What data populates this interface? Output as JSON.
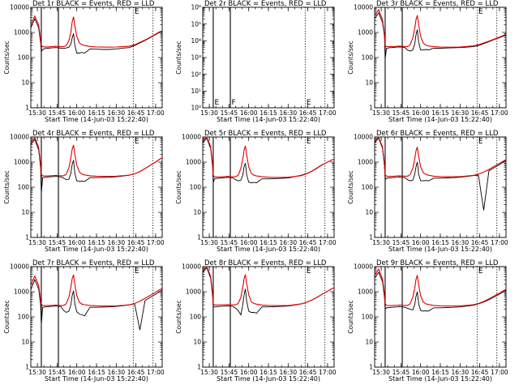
{
  "chart_data": {
    "type": "line",
    "layout": "3x3 grid",
    "title_pattern": "BLACK = Events, RED = LLD",
    "time_axis": {
      "unit": "minutes since 15:00 on 14-Jun-03",
      "range": [
        25,
        125
      ],
      "tick_values": [
        30,
        45,
        60,
        75,
        90,
        105,
        120
      ],
      "tick_labels": [
        "15:30",
        "15:45",
        "16:00",
        "16:15",
        "16:30",
        "16:45",
        "17:00"
      ]
    },
    "y_axis": {
      "scale": "log",
      "default_range": [
        1,
        10000
      ],
      "default_tick_values": [
        1,
        10,
        100,
        1000,
        10000
      ],
      "default_tick_labels": [
        "1",
        "10",
        "100",
        "1000",
        "10000"
      ]
    },
    "marker_lines": {
      "solid": [
        33,
        46
      ],
      "dotted": [
        103,
        118
      ],
      "marker_letters": [
        {
          "label": "E",
          "x": 103
        },
        {
          "label": "F",
          "x": 46
        }
      ]
    },
    "common_x": [
      25,
      28,
      31,
      32.5,
      33,
      34,
      36,
      38,
      40,
      42,
      44,
      46,
      48,
      50,
      52,
      54,
      55.5,
      56.5,
      57.5,
      58.5,
      60,
      62,
      64,
      66,
      70,
      75,
      80,
      85,
      90,
      93,
      96,
      100,
      104,
      108,
      112,
      116,
      120,
      123,
      125
    ],
    "panels": [
      {
        "name": "Det 1r",
        "title": "Det 1r BLACK = Events, RED = LLD",
        "xlabel": "Start Time (14-Jun-03 15:22:40)",
        "ylabel": "Counts/sec",
        "series": [
          {
            "name": "Events",
            "color": "#000000",
            "values": [
              1500,
              3500,
              1500,
              380,
              170,
              210,
              230,
              235,
              240,
              245,
              250,
              245,
              235,
              230,
              240,
              260,
              340,
              600,
              900,
              300,
              150,
              150,
              160,
              150,
              220,
              215,
              210,
              210,
              220,
              230,
              240,
              250,
              300,
              380,
              480,
              620,
              820,
              1000,
              1100
            ]
          },
          {
            "name": "LLD",
            "color": "#e00000",
            "values": [
              2000,
              4500,
              2000,
              500,
              300,
              270,
              265,
              265,
              270,
              275,
              280,
              275,
              270,
              270,
              300,
              480,
              1000,
              2600,
              4200,
              1800,
              700,
              380,
              320,
              300,
              275,
              265,
              260,
              258,
              262,
              268,
              275,
              285,
              320,
              400,
              500,
              650,
              850,
              1050,
              1150
            ]
          }
        ]
      },
      {
        "name": "Det 2r",
        "title": "Det 2r BLACK = Events, RED = LLD",
        "xlabel": "Start Time (14-Jun-03 15:22:40)",
        "ylabel": "Counts/sec",
        "y_range": [
          1,
          1000000
        ],
        "y_tick_values": [
          1,
          10,
          100,
          1000,
          10000,
          100000,
          1000000
        ],
        "y_tick_labels": [
          "10⁰",
          "10¹",
          "10²",
          "10³",
          "10⁴",
          "10⁵",
          "10⁶"
        ],
        "series": []
      },
      {
        "name": "Det 3r",
        "title": "Det 3r BLACK = Events, RED = LLD",
        "xlabel": "Start Time (14-Jun-03 15:22:40)",
        "ylabel": "Counts/sec",
        "series": [
          {
            "name": "Events",
            "color": "#000000",
            "values": [
              3500,
              6000,
              2500,
              700,
              90,
              230,
              245,
              250,
              255,
              260,
              265,
              260,
              250,
              200,
              180,
              200,
              340,
              800,
              1300,
              400,
              200,
              200,
              210,
              200,
              235,
              235,
              240,
              245,
              250,
              255,
              260,
              270,
              300,
              360,
              430,
              520,
              620,
              720,
              800
            ]
          },
          {
            "name": "LLD",
            "color": "#e00000",
            "values": [
              4500,
              8000,
              3200,
              800,
              300,
              275,
              270,
              270,
              275,
              280,
              285,
              280,
              275,
              275,
              320,
              600,
              1400,
              3200,
              4800,
              2000,
              700,
              380,
              310,
              290,
              270,
              262,
              258,
              258,
              262,
              270,
              278,
              290,
              320,
              380,
              450,
              540,
              650,
              760,
              850
            ]
          }
        ]
      },
      {
        "name": "Det 4r",
        "title": "Det 4r BLACK = Events, RED = LLD",
        "xlabel": "Start Time (14-Jun-03 15:22:40)",
        "ylabel": "Counts/sec",
        "series": [
          {
            "name": "Events",
            "color": "#000000",
            "values": [
              5000,
              8000,
              3000,
              600,
              60,
              240,
              250,
              255,
              260,
              265,
              270,
              265,
              255,
              230,
              200,
              210,
              360,
              800,
              1200,
              360,
              180,
              170,
              175,
              170,
              240,
              240,
              245,
              250,
              260,
              270,
              280,
              300,
              340,
              420,
              550,
              750,
              1000,
              1300,
              1500
            ]
          },
          {
            "name": "LLD",
            "color": "#e00000",
            "values": [
              6000,
              9500,
              3800,
              800,
              320,
              285,
              280,
              280,
              285,
              290,
              295,
              290,
              285,
              285,
              330,
              600,
              1500,
              3200,
              4800,
              2000,
              750,
              400,
              330,
              310,
              285,
              275,
              270,
              270,
              275,
              282,
              290,
              305,
              340,
              420,
              550,
              750,
              1000,
              1300,
              1500
            ]
          }
        ]
      },
      {
        "name": "Det 5r",
        "title": "Det 5r BLACK = Events, RED = LLD",
        "xlabel": "Start Time (14-Jun-03 15:22:40)",
        "ylabel": "Counts/sec",
        "series": [
          {
            "name": "Events",
            "color": "#000000",
            "values": [
              6000,
              9000,
              3500,
              700,
              150,
              220,
              225,
              230,
              235,
              240,
              245,
              240,
              235,
              200,
              180,
              190,
              300,
              650,
              900,
              300,
              160,
              150,
              155,
              150,
              215,
              215,
              220,
              225,
              235,
              250,
              270,
              300,
              350,
              440,
              580,
              800,
              1000,
              1200,
              1300
            ]
          },
          {
            "name": "LLD",
            "color": "#e00000",
            "values": [
              7000,
              9800,
              4200,
              900,
              300,
              260,
              255,
              255,
              260,
              265,
              270,
              265,
              260,
              260,
              300,
              550,
              1300,
              3000,
              4400,
              1800,
              650,
              360,
              300,
              280,
              260,
              250,
              245,
              245,
              250,
              258,
              270,
              290,
              340,
              430,
              570,
              780,
              1000,
              1200,
              1300
            ]
          }
        ]
      },
      {
        "name": "Det 6r",
        "title": "Det 6r BLACK = Events, RED = LLD",
        "xlabel": "Start Time (14-Jun-03 15:22:40)",
        "ylabel": "Counts/sec",
        "series": [
          {
            "name": "Events",
            "color": "#000000",
            "values": [
              6000,
              9000,
              3500,
              700,
              200,
              230,
              235,
              240,
              245,
              250,
              255,
              250,
              240,
              200,
              180,
              190,
              320,
              650,
              1000,
              320,
              180,
              180,
              185,
              180,
              230,
              230,
              235,
              240,
              250,
              260,
              270,
              290,
              300,
              12,
              450,
              600,
              800,
              1000,
              1200
            ]
          },
          {
            "name": "LLD",
            "color": "#e00000",
            "values": [
              7000,
              9800,
              4000,
              850,
              320,
              275,
              270,
              270,
              275,
              280,
              285,
              280,
              275,
              275,
              320,
              560,
              1300,
              2800,
              4000,
              1700,
              650,
              380,
              320,
              300,
              275,
              265,
              260,
              260,
              265,
              272,
              282,
              295,
              330,
              400,
              510,
              680,
              880,
              1100,
              1250
            ]
          }
        ]
      },
      {
        "name": "Det 7r",
        "title": "Det 7r BLACK = Events, RED = LLD",
        "xlabel": "Start Time (14-Jun-03 15:22:40)",
        "ylabel": "Counts/sec",
        "series": [
          {
            "name": "Events",
            "color": "#000000",
            "values": [
              1200,
              3000,
              1300,
              300,
              50,
              240,
              250,
              255,
              260,
              265,
              270,
              265,
              255,
              180,
              150,
              170,
              300,
              700,
              1100,
              330,
              160,
              130,
              120,
              110,
              240,
              240,
              245,
              250,
              260,
              270,
              280,
              300,
              330,
              30,
              450,
              600,
              800,
              1000,
              1200
            ]
          },
          {
            "name": "LLD",
            "color": "#e00000",
            "values": [
              1800,
              4200,
              1800,
              450,
              320,
              285,
              280,
              280,
              285,
              290,
              295,
              290,
              285,
              285,
              330,
              620,
              1500,
              3300,
              4800,
              2000,
              700,
              380,
              320,
              305,
              285,
              275,
              270,
              270,
              275,
              282,
              290,
              305,
              340,
              420,
              550,
              720,
              950,
              1200,
              1350
            ]
          }
        ]
      },
      {
        "name": "Det 8r",
        "title": "Det 8r BLACK = Events, RED = LLD",
        "xlabel": "Start Time (14-Jun-03 15:22:40)",
        "ylabel": "Counts/sec",
        "series": [
          {
            "name": "Events",
            "color": "#000000",
            "values": [
              6000,
              9000,
              3500,
              700,
              250,
              250,
              255,
              260,
              265,
              270,
              275,
              270,
              260,
              220,
              180,
              120,
              300,
              750,
              1300,
              400,
              170,
              150,
              150,
              140,
              250,
              250,
              255,
              260,
              270,
              285,
              300,
              330,
              380,
              470,
              600,
              800,
              1050,
              1300,
              1450
            ]
          },
          {
            "name": "LLD",
            "color": "#e00000",
            "values": [
              7000,
              9800,
              4200,
              900,
              330,
              300,
              295,
              295,
              300,
              305,
              310,
              305,
              300,
              300,
              340,
              600,
              1500,
              3300,
              4900,
              2000,
              750,
              400,
              340,
              320,
              295,
              285,
              280,
              280,
              285,
              295,
              310,
              330,
              380,
              470,
              600,
              800,
              1050,
              1300,
              1450
            ]
          }
        ]
      },
      {
        "name": "Det 9r",
        "title": "Det 9r BLACK = Events, RED = LLD",
        "xlabel": "Start Time (14-Jun-03 15:22:40)",
        "ylabel": "Counts/sec",
        "series": [
          {
            "name": "Events",
            "color": "#000000",
            "values": [
              3500,
              6000,
              2500,
              600,
              200,
              230,
              235,
              240,
              245,
              250,
              255,
              250,
              240,
              220,
              200,
              190,
              300,
              650,
              1000,
              330,
              180,
              170,
              175,
              170,
              230,
              230,
              235,
              240,
              250,
              260,
              270,
              290,
              330,
              390,
              480,
              620,
              800,
              1000,
              1150
            ]
          },
          {
            "name": "LLD",
            "color": "#e00000",
            "values": [
              4500,
              8000,
              3200,
              800,
              330,
              285,
              280,
              280,
              285,
              290,
              295,
              290,
              285,
              285,
              330,
              600,
              1400,
              3100,
              4600,
              1900,
              700,
              390,
              330,
              310,
              285,
              275,
              270,
              270,
              275,
              282,
              290,
              305,
              340,
              410,
              520,
              680,
              880,
              1100,
              1250
            ]
          }
        ]
      }
    ]
  }
}
